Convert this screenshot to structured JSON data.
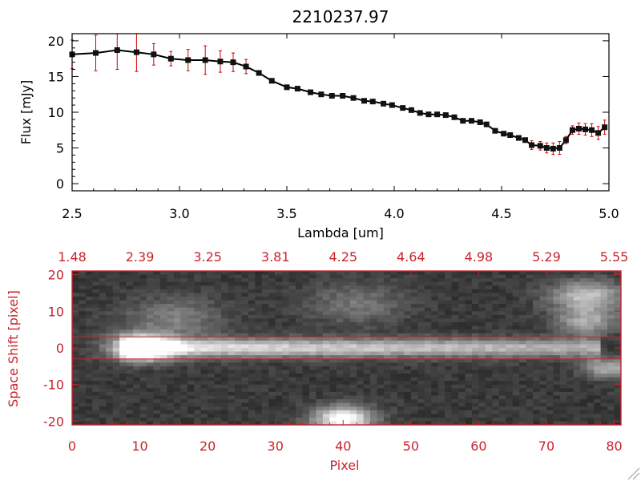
{
  "title": "2210237.97",
  "colors": {
    "axis_top": "#000000",
    "error_bars": "#d40000",
    "axis_bottom": "#c8232c",
    "background": "#ffffff"
  },
  "chart_data": [
    {
      "type": "line",
      "title": "2210237.97",
      "xlabel": "Lambda [um]",
      "ylabel": "Flux [mJy]",
      "xlim": [
        2.5,
        5.0
      ],
      "ylim": [
        -1,
        21
      ],
      "x_ticks": [
        "2.5",
        "3.0",
        "3.5",
        "4.0",
        "4.5",
        "5.0"
      ],
      "y_ticks": [
        "0",
        "5",
        "10",
        "15",
        "20"
      ],
      "grid": false,
      "legend": "none",
      "series": [
        {
          "markers": "filled-square",
          "error_bars": true,
          "x": [
            2.5,
            2.61,
            2.71,
            2.8,
            2.88,
            2.96,
            3.04,
            3.12,
            3.19,
            3.25,
            3.31,
            3.37,
            3.43,
            3.5,
            3.55,
            3.61,
            3.66,
            3.71,
            3.76,
            3.81,
            3.86,
            3.9,
            3.95,
            3.99,
            4.04,
            4.08,
            4.12,
            4.16,
            4.2,
            4.24,
            4.28,
            4.32,
            4.36,
            4.4,
            4.43,
            4.47,
            4.51,
            4.54,
            4.58,
            4.61,
            4.64,
            4.68,
            4.71,
            4.74,
            4.77,
            4.8,
            4.83,
            4.86,
            4.89,
            4.92,
            4.95,
            4.98
          ],
          "y": [
            18.1,
            18.3,
            18.7,
            18.4,
            18.1,
            17.5,
            17.3,
            17.3,
            17.1,
            17.0,
            16.4,
            15.5,
            14.4,
            13.5,
            13.3,
            12.8,
            12.5,
            12.3,
            12.3,
            12.0,
            11.6,
            11.5,
            11.2,
            11.0,
            10.6,
            10.3,
            9.9,
            9.7,
            9.7,
            9.6,
            9.3,
            8.8,
            8.8,
            8.6,
            8.3,
            7.4,
            7.0,
            6.8,
            6.4,
            6.1,
            5.4,
            5.3,
            5.0,
            4.9,
            5.0,
            6.1,
            7.5,
            7.7,
            7.6,
            7.5,
            7.1,
            7.9
          ],
          "yerr": [
            2.0,
            2.5,
            2.7,
            2.7,
            1.5,
            1.0,
            1.5,
            2.0,
            1.5,
            1.3,
            1.0,
            0.3,
            0.3,
            0.3,
            0.3,
            0.3,
            0.3,
            0.3,
            0.3,
            0.3,
            0.3,
            0.3,
            0.3,
            0.3,
            0.3,
            0.3,
            0.3,
            0.3,
            0.3,
            0.3,
            0.3,
            0.3,
            0.3,
            0.3,
            0.3,
            0.3,
            0.3,
            0.3,
            0.3,
            0.3,
            0.6,
            0.6,
            0.7,
            0.8,
            0.9,
            0.5,
            0.6,
            0.8,
            0.8,
            0.9,
            0.9,
            1.0
          ]
        }
      ]
    },
    {
      "type": "heatmap",
      "xlabel": "Pixel",
      "ylabel": "Space Shift [pixel]",
      "xlim": [
        0,
        81
      ],
      "ylim": [
        -21,
        21
      ],
      "x_ticks": [
        "0",
        "10",
        "20",
        "30",
        "40",
        "50",
        "60",
        "70",
        "80"
      ],
      "y_ticks": [
        "-20",
        "-10",
        "0",
        "10",
        "20"
      ],
      "top_axis_labels": [
        "1.48",
        "2.39",
        "3.25",
        "3.81",
        "4.25",
        "4.64",
        "4.98",
        "5.29",
        "5.55"
      ],
      "colormap": "grayscale",
      "extraction_window": [
        -3,
        3
      ],
      "features": [
        {
          "pixel": [
            7,
            78
          ],
          "shift": 0,
          "width": 1.8,
          "intensity": 0.75
        },
        {
          "pixel": 10,
          "shift": 0,
          "width": 2.5,
          "intensity": 1.0
        },
        {
          "pixel": 40,
          "shift": -19.5,
          "width": 2.5,
          "intensity": 0.9
        },
        {
          "pixel": 76,
          "shift": 14,
          "width": 3,
          "intensity": 0.6
        },
        {
          "pixel": 76,
          "shift": 7,
          "width": 2.5,
          "intensity": 0.45
        },
        {
          "pixel": 79,
          "shift": -5.5,
          "width": 2,
          "intensity": 0.5
        },
        {
          "pixel": 15,
          "shift": 8,
          "width": 4,
          "intensity": 0.3
        },
        {
          "pixel": 42,
          "shift": 12,
          "width": 4,
          "intensity": 0.25
        }
      ]
    }
  ]
}
